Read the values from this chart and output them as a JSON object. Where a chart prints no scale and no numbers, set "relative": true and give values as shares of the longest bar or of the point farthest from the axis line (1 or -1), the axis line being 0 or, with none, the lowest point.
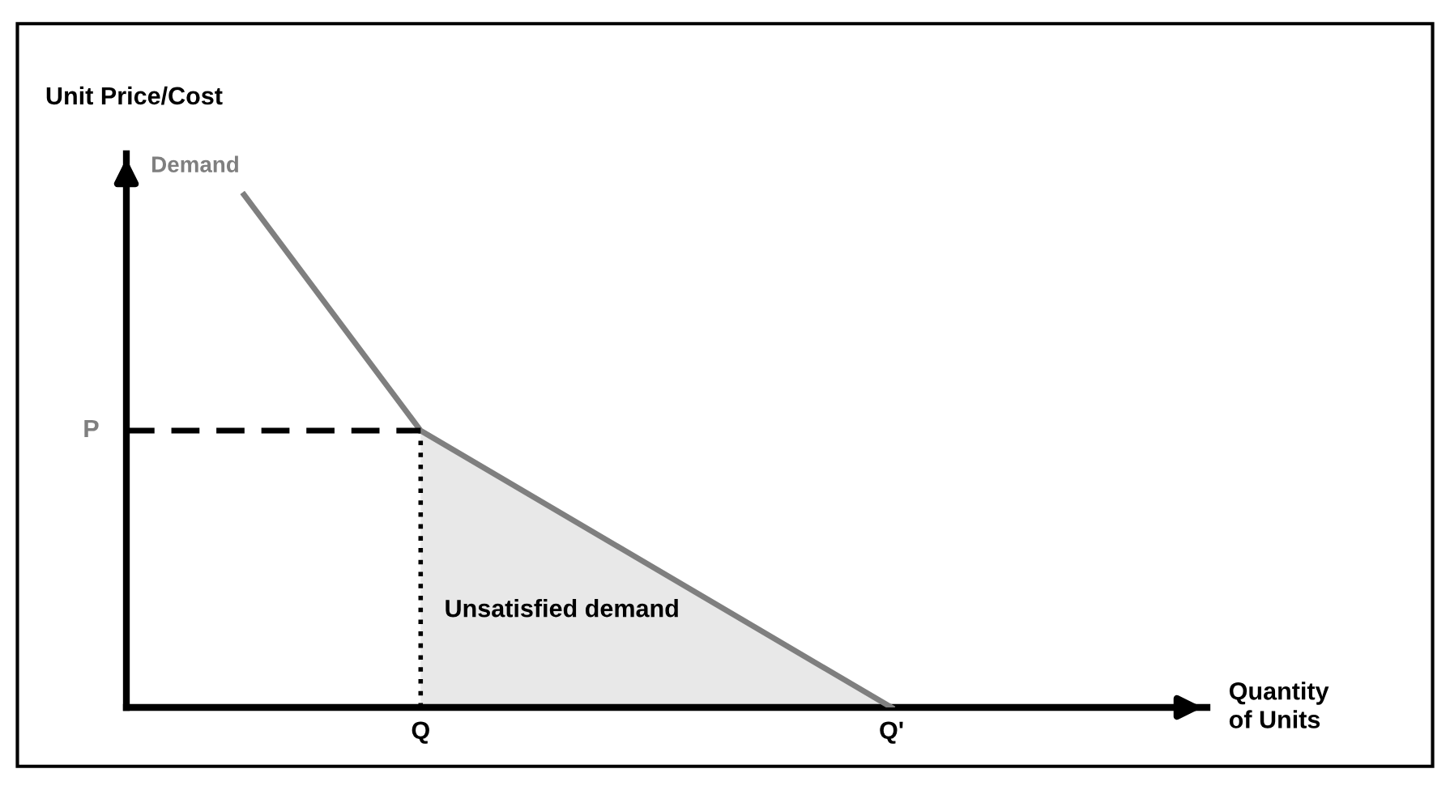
{
  "chart_data": {
    "type": "line",
    "relative": true,
    "xlabel": "Quantity\nof Units",
    "ylabel": "Unit Price/Cost",
    "categories": [
      null,
      null,
      null,
      null,
      null,
      "Q",
      null,
      null,
      null,
      null,
      null,
      null,
      null,
      "Q'",
      null,
      null,
      null,
      null,
      null
    ],
    "tick_labels": "x",
    "series": [
      {
        "type": "area",
        "line_style": "dotted",
        "color": "#e8e8e8",
        "values": [
          null,
          null,
          null,
          null,
          null,
          0.54,
          null,
          null,
          null,
          null,
          null,
          null,
          null,
          0,
          null,
          null,
          null,
          null,
          null
        ]
      },
      {
        "name": "Demand",
        "color": "#7f7f7f",
        "values": [
          null,
          null,
          1,
          null,
          null,
          0.54,
          null,
          null,
          null,
          null,
          null,
          null,
          null,
          0,
          null,
          null,
          null,
          null,
          null
        ]
      },
      {
        "line_style": "dashed",
        "color": "#000000",
        "values": [
          0.54,
          null,
          null,
          null,
          null,
          0.54,
          null,
          null,
          null,
          null,
          null,
          null,
          null,
          null,
          null,
          null,
          null,
          null,
          null
        ]
      }
    ],
    "annotations": [
      "P",
      "Unsatisfied demand"
    ]
  }
}
